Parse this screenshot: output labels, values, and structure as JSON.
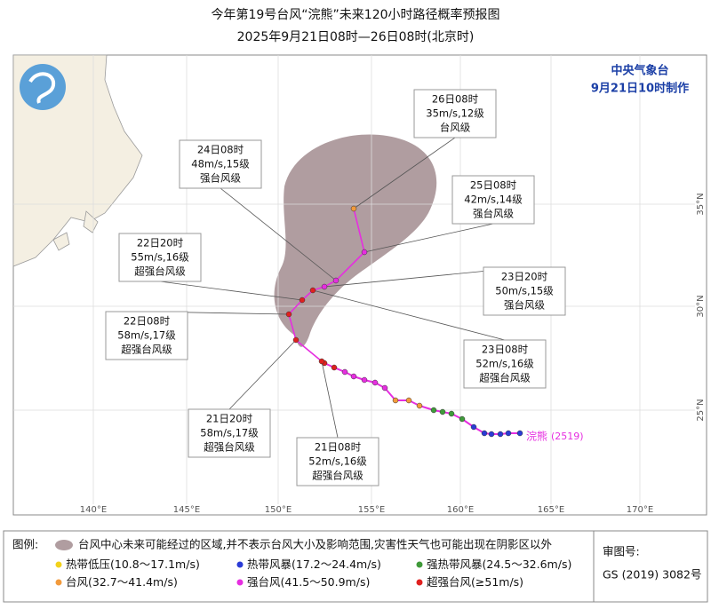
{
  "header": {
    "title": "今年第19号台风“浣熊”未来120小时路径概率预报图",
    "subtitle": "2025年9月21日08时—26日08时(北京时)"
  },
  "map": {
    "agency": "中央气象台",
    "issued": "9月21日10时制作",
    "lon_labels": [
      "140°E",
      "145°E",
      "150°E",
      "155°E",
      "160°E",
      "165°E",
      "170°E"
    ],
    "lat_labels": [
      "35°N",
      "30°N",
      "25°N"
    ],
    "typhoon": {
      "name": "浣熊",
      "code": "(2519)"
    },
    "forecasts": [
      {
        "time": "21日08时",
        "wind": "52m/s,16级",
        "grade": "超强台风级"
      },
      {
        "time": "21日20时",
        "wind": "58m/s,17级",
        "grade": "超强台风级"
      },
      {
        "time": "22日08时",
        "wind": "58m/s,17级",
        "grade": "超强台风级"
      },
      {
        "time": "22日20时",
        "wind": "55m/s,16级",
        "grade": "超强台风级"
      },
      {
        "time": "23日08时",
        "wind": "52m/s,16级",
        "grade": "超强台风级"
      },
      {
        "time": "23日20时",
        "wind": "50m/s,15级",
        "grade": "强台风级"
      },
      {
        "time": "24日08时",
        "wind": "48m/s,15级",
        "grade": "强台风级"
      },
      {
        "time": "25日08时",
        "wind": "42m/s,14级",
        "grade": "强台风级"
      },
      {
        "time": "26日08时",
        "wind": "35m/s,12级",
        "grade": "台风级"
      }
    ]
  },
  "legend": {
    "title": "图例:",
    "cone": "台风中心未来可能经过的区域,并不表示台风大小及影响范围,灾害性天气也可能出现在阴影区以外",
    "items": [
      {
        "name": "热带低压",
        "range": "(10.8～17.1m/s)",
        "color": "#f2d21b"
      },
      {
        "name": "热带风暴",
        "range": "(17.2～24.4m/s)",
        "color": "#2a3bd6"
      },
      {
        "name": "强热带风暴",
        "range": "(24.5～32.6m/s)",
        "color": "#3f9a3a"
      },
      {
        "name": "台风",
        "range": "(32.7～41.4m/s)",
        "color": "#f29a3c"
      },
      {
        "name": "强台风",
        "range": "(41.5～50.9m/s)",
        "color": "#e62ee0"
      },
      {
        "name": "超强台风",
        "range": "(≥51m/s)",
        "color": "#e0201f"
      }
    ]
  },
  "approval": {
    "label": "审图号:",
    "number": "GS (2019) 3082号"
  }
}
